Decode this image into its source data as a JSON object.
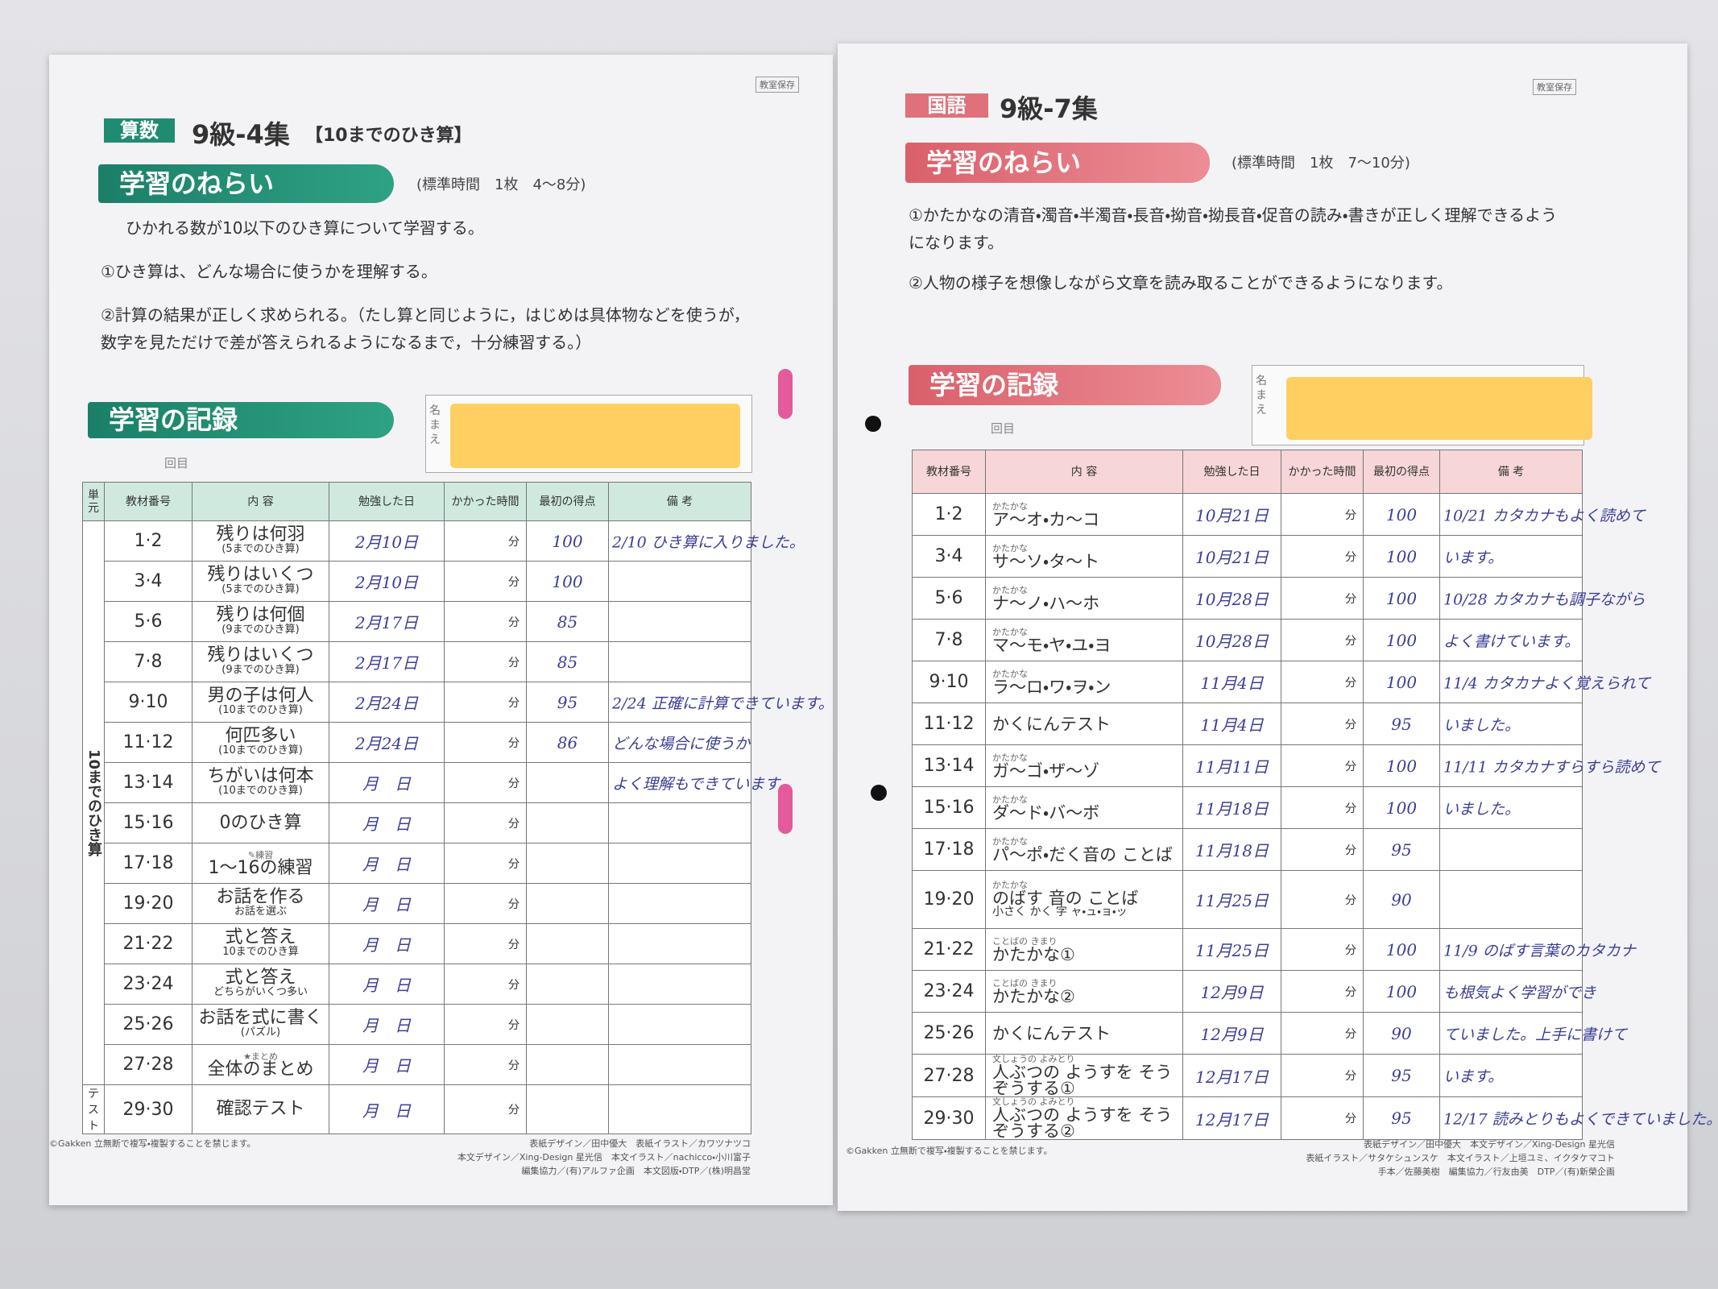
{
  "left": {
    "subject": "算数",
    "title": "9級-4集",
    "subtitle": "【10までのひき算】",
    "stamp": "教室保存",
    "aim_heading": "学習のねらい",
    "aim_time": "(標準時間　1枚　4～8分)",
    "aims": [
      "ひかれる数が10以下のひき算について学習する。",
      "①ひき算は、どんな場合に使うかを理解する。",
      "②計算の結果が正しく求められる。（たし算と同じように，はじめは具体物などを使うが，数字を見ただけで差が答えられるようになるまで，十分練習する。）"
    ],
    "record_heading": "学習の記録",
    "name_label": "名まえ",
    "kai": "回目",
    "table": {
      "headers": [
        "単元",
        "教材番号",
        "内 容",
        "勉強した日",
        "かかった時間",
        "最初の得点",
        "備 考"
      ],
      "units": [
        {
          "label": "10までのひき算",
          "rows": [
            {
              "num": "1·2",
              "content": "残りは何羽",
              "sub": "(5までのひき算)",
              "date": "2月10日",
              "time": "分",
              "score": "100",
              "note": "2/10 ひき算に入りました。"
            },
            {
              "num": "3·4",
              "content": "残りはいくつ",
              "sub": "(5までのひき算)",
              "date": "2月10日",
              "time": "分",
              "score": "100"
            },
            {
              "num": "5·6",
              "content": "残りは何個",
              "sub": "(9までのひき算)",
              "date": "2月17日",
              "time": "分",
              "score": "85"
            },
            {
              "num": "7·8",
              "content": "残りはいくつ",
              "sub": "(9までのひき算)",
              "date": "2月17日",
              "time": "分",
              "score": "85"
            },
            {
              "num": "9·10",
              "content": "男の子は何人",
              "sub": "(10までのひき算)",
              "date": "2月24日",
              "time": "分",
              "score": "95",
              "note": "2/24 正確に計算できています。"
            },
            {
              "num": "11·12",
              "content": "何匹多い",
              "sub": "(10までのひき算)",
              "date": "2月24日",
              "time": "分",
              "score": "86",
              "note": "どんな場合に使うか"
            },
            {
              "num": "13·14",
              "content": "ちがいは何本",
              "sub": "(10までのひき算)",
              "date": "月　日",
              "time": "分",
              "note": "よく理解もできています。"
            },
            {
              "num": "15·16",
              "content": "0のひき算",
              "date": "月　日",
              "time": "分"
            },
            {
              "num": "17·18",
              "tag": "✎練習",
              "content": "1～16の練習",
              "date": "月　日",
              "time": "分"
            },
            {
              "num": "19·20",
              "content": "お話を作る",
              "sub": "お話を選ぶ",
              "date": "月　日",
              "time": "分"
            },
            {
              "num": "21·22",
              "content": "式と答え",
              "sub": "10までのひき算",
              "date": "月　日",
              "time": "分"
            },
            {
              "num": "23·24",
              "content": "式と答え",
              "sub": "どちらがいくつ多い",
              "date": "月　日",
              "time": "分"
            },
            {
              "num": "25·26",
              "content": "お話を式に書く",
              "sub": "(パズル)",
              "date": "月　日",
              "time": "分"
            },
            {
              "num": "27·28",
              "tag": "★まとめ",
              "content": "全体のまとめ",
              "date": "月　日",
              "time": "分"
            }
          ]
        },
        {
          "label": "テスト",
          "rows": [
            {
              "num": "29·30",
              "content": "確認テスト",
              "date": "月　日",
              "time": "分"
            }
          ]
        }
      ]
    },
    "footer": [
      "©Gakken 立無断で複写・複製することを禁じます。",
      "表紙デザイン／田中優大　表紙イラスト／カワツナツコ",
      "本文デザイン／Xing-Design 星光信　本文イラスト／nachicco・小川富子",
      "編集協力／(有)アルファ企画　本文図版・DTP／(株)明昌堂"
    ]
  },
  "right": {
    "subject": "国語",
    "title": "9級-7集",
    "stamp": "教室保存",
    "aim_heading": "学習のねらい",
    "aim_time": "(標準時間　1枚　7～10分)",
    "aims": [
      "①かたかなの清音・濁音・半濁音・長音・拗音・拗長音・促音の読み・書きが正しく理解できるようになります。",
      "②人物の様子を想像しながら文章を読み取ることができるようになります。"
    ],
    "record_heading": "学習の記録",
    "name_label": "名まえ",
    "kai": "回目",
    "table": {
      "headers": [
        "教材番号",
        "内 容",
        "勉強した日",
        "かかった時間",
        "最初の得点",
        "備 考"
      ],
      "rows": [
        {
          "num": "1·2",
          "tag": "かたかな",
          "content": "ア～オ・カ～コ",
          "date": "10月21日",
          "time": "分",
          "score": "100",
          "note": "10/21 カタカナもよく読めて"
        },
        {
          "num": "3·4",
          "tag": "かたかな",
          "content": "サ～ソ・タ～ト",
          "date": "10月21日",
          "time": "分",
          "score": "100",
          "note": "います。"
        },
        {
          "num": "5·6",
          "tag": "かたかな",
          "content": "ナ～ノ・ハ～ホ",
          "date": "10月28日",
          "time": "分",
          "score": "100",
          "note": "10/28 カタカナも調子ながら"
        },
        {
          "num": "7·8",
          "tag": "かたかな",
          "content": "マ～モ・ヤ・ユ・ヨ",
          "date": "10月28日",
          "time": "分",
          "score": "100",
          "note": "よく書けています。"
        },
        {
          "num": "9·10",
          "tag": "かたかな",
          "content": "ラ～ロ・ワ・ヲ・ン",
          "date": "11月4日",
          "time": "分",
          "score": "100",
          "note": "11/4 カタカナよく覚えられて"
        },
        {
          "num": "11·12",
          "content": "かくにんテスト",
          "date": "11月4日",
          "time": "分",
          "score": "95",
          "note": "いました。"
        },
        {
          "num": "13·14",
          "tag": "かたかな",
          "content": "ガ～ゴ・ザ～ゾ",
          "date": "11月11日",
          "time": "分",
          "score": "100",
          "note": "11/11 カタカナすらすら読めて"
        },
        {
          "num": "15·16",
          "tag": "かたかな",
          "content": "ダ～ド・バ～ボ",
          "date": "11月18日",
          "time": "分",
          "score": "100",
          "note": "いました。"
        },
        {
          "num": "17·18",
          "tag": "かたかな",
          "content": "パ～ポ・だく音の ことば",
          "date": "11月18日",
          "time": "分",
          "score": "95"
        },
        {
          "num": "19·20",
          "tag": "かたかな",
          "content": "のばす 音の ことば",
          "sub": "小さく かく 字 ャ・ュ・ョ・ッ",
          "date": "11月25日",
          "time": "分",
          "score": "90"
        },
        {
          "num": "21·22",
          "tag": "ことばの きまり",
          "content": "かたかな①",
          "date": "11月25日",
          "time": "分",
          "score": "100",
          "note": "11/9 のばす言葉のカタカナ"
        },
        {
          "num": "23·24",
          "tag": "ことばの きまり",
          "content": "かたかな②",
          "date": "12月9日",
          "time": "分",
          "score": "100",
          "note": "も根気よく学習ができ"
        },
        {
          "num": "25·26",
          "content": "かくにんテスト",
          "date": "12月9日",
          "time": "分",
          "score": "90",
          "note": "ていました。上手に書けて"
        },
        {
          "num": "27·28",
          "tag": "文しょうの よみとり",
          "content": "人ぶつの ようすを そうぞうする①",
          "date": "12月17日",
          "time": "分",
          "score": "95",
          "note": "います。"
        },
        {
          "num": "29·30",
          "tag": "文しょうの よみとり",
          "content": "人ぶつの ようすを そうぞうする②",
          "date": "12月17日",
          "time": "分",
          "score": "95",
          "note": "12/17 読みとりもよくできていました。"
        }
      ]
    },
    "footer": [
      "©Gakken 立無断で複写・複製することを禁じます。",
      "表紙デザイン／田中優大　本文デザイン／Xing-Design 星光信",
      "表紙イラスト／サタケシュンスケ　本文イラスト／上垣ユミ、イクタケマコト",
      "手本／佐藤美樹　編集協力／行友由美　DTP／(有)新榮企画"
    ]
  }
}
